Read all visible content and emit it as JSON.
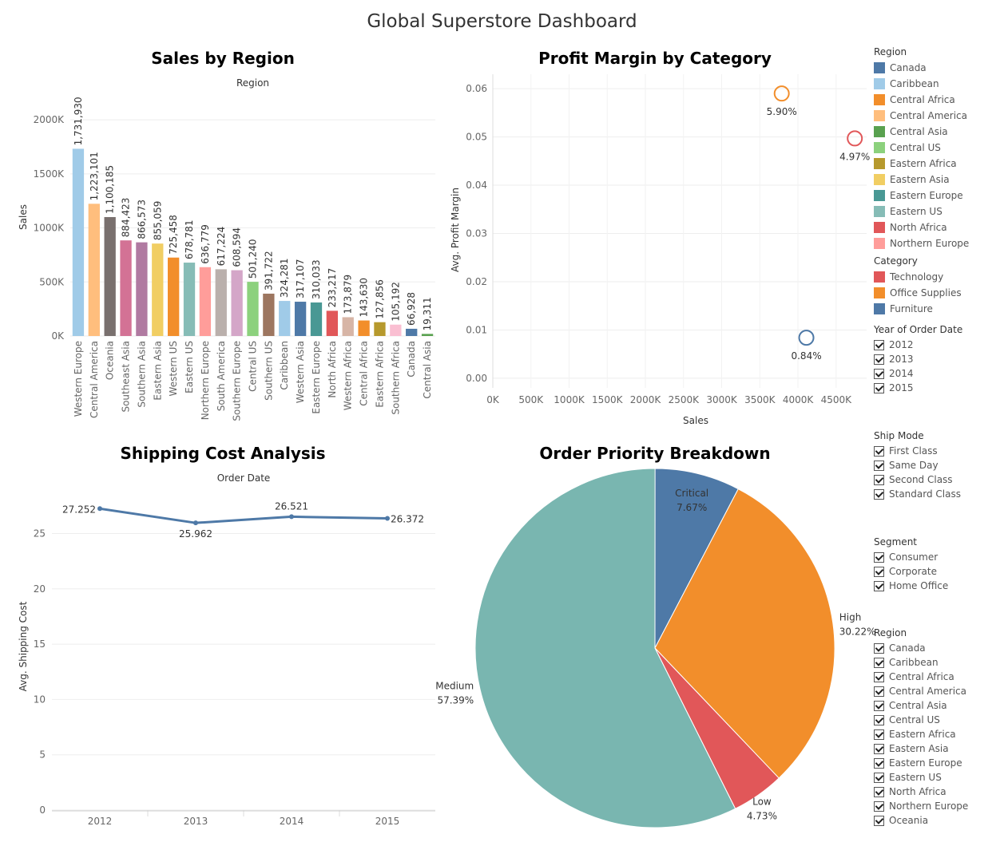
{
  "dashboard": {
    "title": "Global Superstore Dashboard"
  },
  "colors": {
    "canada": "#4E79A7",
    "caribbean": "#A0CBE8",
    "central_africa": "#F28E2B",
    "central_america": "#FFBE7D",
    "central_asia": "#59A14F",
    "central_us": "#8CD17D",
    "eastern_africa": "#B6992D",
    "eastern_asia": "#F1CE63",
    "eastern_europe": "#499894",
    "eastern_us": "#86BCB6",
    "north_africa": "#E15759",
    "northern_europe": "#FF9D9A",
    "oceania": "#79706E",
    "south_america": "#BAB0AC",
    "southeast_asia": "#D37295",
    "southern_africa": "#FABFD2",
    "southern_asia": "#B07AA1",
    "southern_europe": "#D4A6C8",
    "southern_us": "#9D7660",
    "western_africa": "#D7B5A6",
    "western_asia": "#4E79A7",
    "western_europe": "#A0CBE8",
    "western_us": "#F28E2B"
  },
  "chart_data": [
    {
      "type": "bar",
      "title": "Sales by Region",
      "xlabel": "Region",
      "ylabel": "Sales",
      "ylim": [
        0,
        2200000
      ],
      "yticks": [
        0,
        500000,
        1000000,
        1500000,
        2000000
      ],
      "ytick_labels": [
        "0K",
        "500K",
        "1000K",
        "1500K",
        "2000K"
      ],
      "grid": true,
      "categories": [
        "Western Europe",
        "Central America",
        "Oceania",
        "Southeast Asia",
        "Southern Asia",
        "Eastern Asia",
        "Western US",
        "Eastern US",
        "Northern Europe",
        "South America",
        "Southern Europe",
        "Central US",
        "Southern US",
        "Caribbean",
        "Western Asia",
        "Eastern Europe",
        "North Africa",
        "Western Africa",
        "Central Africa",
        "Eastern Africa",
        "Southern Africa",
        "Canada",
        "Central Asia"
      ],
      "values": [
        1731930,
        1223101,
        1100185,
        884423,
        866573,
        855059,
        725458,
        678781,
        636779,
        617224,
        608594,
        501240,
        391722,
        324281,
        317107,
        310033,
        233217,
        173879,
        143630,
        127856,
        105192,
        66928,
        19311
      ],
      "value_labels": [
        "1,731,930",
        "1,223,101",
        "1,100,185",
        "884,423",
        "866,573",
        "855,059",
        "725,458",
        "678,781",
        "636,779",
        "617,224",
        "608,594",
        "501,240",
        "391,722",
        "324,281",
        "317,107",
        "310,033",
        "233,217",
        "173,879",
        "143,630",
        "127,856",
        "105,192",
        "66,928",
        "19,311"
      ],
      "bar_colors": [
        "#A0CBE8",
        "#FFBE7D",
        "#79706E",
        "#D37295",
        "#B07AA1",
        "#F1CE63",
        "#F28E2B",
        "#86BCB6",
        "#FF9D9A",
        "#BAB0AC",
        "#D4A6C8",
        "#8CD17D",
        "#9D7660",
        "#A0CBE8",
        "#4E79A7",
        "#499894",
        "#E15759",
        "#D7B5A6",
        "#F28E2B",
        "#B6992D",
        "#FABFD2",
        "#4E79A7",
        "#59A14F"
      ]
    },
    {
      "type": "scatter",
      "title": "Profit Margin by Category",
      "xlabel": "Sales",
      "ylabel": "Avg. Profit Margin",
      "xlim": [
        0,
        4900000
      ],
      "ylim": [
        -0.002,
        0.063
      ],
      "xticks": [
        0,
        500000,
        1000000,
        1500000,
        2000000,
        2500000,
        3000000,
        3500000,
        4000000,
        4500000
      ],
      "xtick_labels": [
        "0K",
        "500K",
        "1000K",
        "1500K",
        "2000K",
        "2500K",
        "3000K",
        "3500K",
        "4000K",
        "4500K"
      ],
      "yticks": [
        0,
        0.01,
        0.02,
        0.03,
        0.04,
        0.05,
        0.06
      ],
      "ytick_labels": [
        "0.00",
        "0.01",
        "0.02",
        "0.03",
        "0.04",
        "0.05",
        "0.06"
      ],
      "grid": true,
      "points": [
        {
          "category": "Office Supplies",
          "x": 3787000,
          "y": 0.059,
          "label": "5.90%",
          "color": "#F28E2B"
        },
        {
          "category": "Technology",
          "x": 4745000,
          "y": 0.0497,
          "label": "4.97%",
          "color": "#E15759"
        },
        {
          "category": "Furniture",
          "x": 4110000,
          "y": 0.0084,
          "label": "0.84%",
          "color": "#4E79A7"
        }
      ]
    },
    {
      "type": "line",
      "title": "Shipping Cost Analysis",
      "xlabel": "Order Date",
      "ylabel": "Avg. Shipping Cost",
      "categories": [
        "2012",
        "2013",
        "2014",
        "2015"
      ],
      "values": [
        27.252,
        25.962,
        26.521,
        26.372
      ],
      "value_labels": [
        "27.252",
        "25.962",
        "26.521",
        "26.372"
      ],
      "ylim": [
        0,
        28.5
      ],
      "yticks": [
        0,
        5,
        10,
        15,
        20,
        25
      ],
      "ytick_labels": [
        "0",
        "5",
        "10",
        "15",
        "20",
        "25"
      ],
      "color": "#4E79A7",
      "grid": true
    },
    {
      "type": "pie",
      "title": "Order Priority Breakdown",
      "slices": [
        {
          "label": "Critical",
          "pct": 7.67,
          "pct_label": "7.67%",
          "color": "#4E79A7"
        },
        {
          "label": "High",
          "pct": 30.22,
          "pct_label": "30.22%",
          "color": "#F28E2B"
        },
        {
          "label": "Low",
          "pct": 4.73,
          "pct_label": "4.73%",
          "color": "#E15759"
        },
        {
          "label": "Medium",
          "pct": 57.39,
          "pct_label": "57.39%",
          "color": "#79B6B0"
        }
      ]
    }
  ],
  "legend_region": {
    "title": "Region",
    "items": [
      {
        "label": "Canada",
        "color": "#4E79A7"
      },
      {
        "label": "Caribbean",
        "color": "#A0CBE8"
      },
      {
        "label": "Central Africa",
        "color": "#F28E2B"
      },
      {
        "label": "Central America",
        "color": "#FFBE7D"
      },
      {
        "label": "Central Asia",
        "color": "#59A14F"
      },
      {
        "label": "Central US",
        "color": "#8CD17D"
      },
      {
        "label": "Eastern Africa",
        "color": "#B6992D"
      },
      {
        "label": "Eastern Asia",
        "color": "#F1CE63"
      },
      {
        "label": "Eastern Europe",
        "color": "#499894"
      },
      {
        "label": "Eastern US",
        "color": "#86BCB6"
      },
      {
        "label": "North Africa",
        "color": "#E15759"
      },
      {
        "label": "Northern Europe",
        "color": "#FF9D9A"
      }
    ]
  },
  "legend_category": {
    "title": "Category",
    "items": [
      {
        "label": "Technology",
        "color": "#E15759"
      },
      {
        "label": "Office Supplies",
        "color": "#F28E2B"
      },
      {
        "label": "Furniture",
        "color": "#4E79A7"
      }
    ]
  },
  "filter_year": {
    "title": "Year of Order Date",
    "items": [
      "2012",
      "2013",
      "2014",
      "2015"
    ]
  },
  "filter_ship": {
    "title": "Ship Mode",
    "items": [
      "First Class",
      "Same Day",
      "Second Class",
      "Standard Class"
    ]
  },
  "filter_segment": {
    "title": "Segment",
    "items": [
      "Consumer",
      "Corporate",
      "Home Office"
    ]
  },
  "filter_region": {
    "title": "Region",
    "items": [
      "Canada",
      "Caribbean",
      "Central Africa",
      "Central America",
      "Central Asia",
      "Central US",
      "Eastern Africa",
      "Eastern Asia",
      "Eastern Europe",
      "Eastern US",
      "North Africa",
      "Northern Europe",
      "Oceania"
    ]
  }
}
